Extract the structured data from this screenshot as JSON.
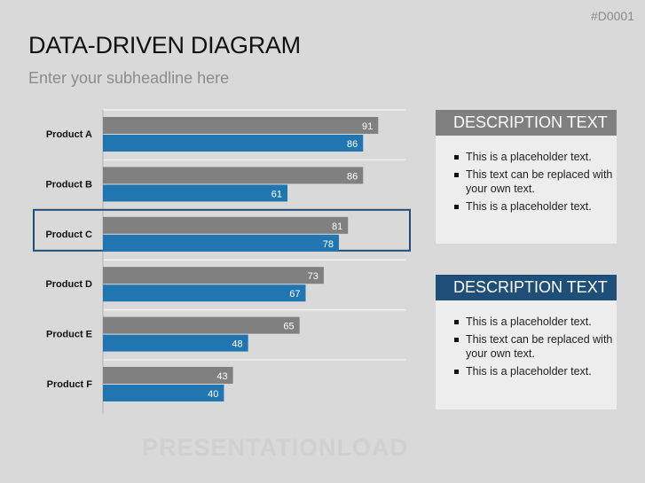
{
  "slide": {
    "code": "#D0001",
    "title": "DATA-DRIVEN DIAGRAM",
    "subtitle": "Enter your subheadline here",
    "watermark": "PRESENTATIONLOAD"
  },
  "chart_data": {
    "type": "bar",
    "orientation": "horizontal",
    "categories": [
      "Product A",
      "Product B",
      "Product C",
      "Product D",
      "Product E",
      "Product F"
    ],
    "series": [
      {
        "values": [
          91,
          86,
          81,
          73,
          65,
          43
        ],
        "color": "#808080"
      },
      {
        "values": [
          86,
          61,
          78,
          67,
          48,
          40
        ],
        "color": "#2176b2"
      }
    ],
    "xlim": [
      0,
      100
    ],
    "grid": true,
    "highlighted_category": "Product C",
    "highlight_color": "#1f4e79"
  },
  "boxes": [
    {
      "header": "DESCRIPTION TEXT",
      "header_color": "#808080",
      "items": [
        "This is a placeholder text.",
        "This text can be replaced with your own text.",
        "This is a placeholder text."
      ]
    },
    {
      "header": "DESCRIPTION TEXT",
      "header_color": "#1f4e79",
      "items": [
        "This is a placeholder text.",
        "This text can be replaced with your own text.",
        "This is a placeholder text."
      ]
    }
  ]
}
